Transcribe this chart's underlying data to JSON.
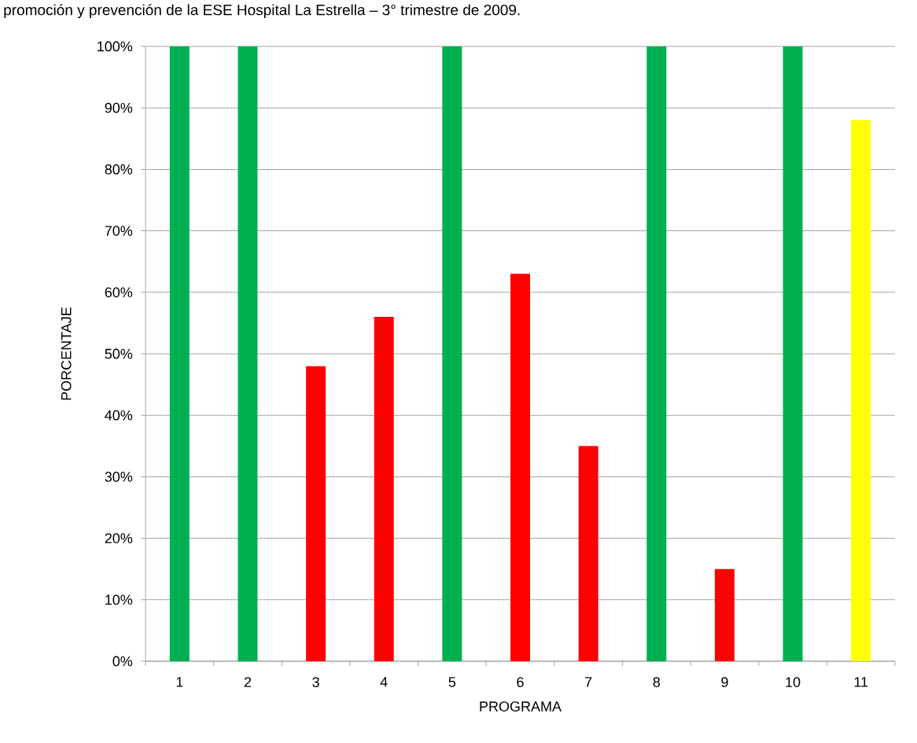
{
  "chart_data": {
    "type": "bar",
    "title": "promoción y prevención de la ESE Hospital La Estrella – 3° trimestre de 2009.",
    "xlabel": "PROGRAMA",
    "ylabel": "PORCENTAJE",
    "categories": [
      "1",
      "2",
      "3",
      "4",
      "5",
      "6",
      "7",
      "8",
      "9",
      "10",
      "11"
    ],
    "values": [
      100,
      100,
      48,
      56,
      100,
      63,
      35,
      100,
      15,
      100,
      88
    ],
    "colors": [
      "#00b050",
      "#00b050",
      "#ff0000",
      "#ff0000",
      "#00b050",
      "#ff0000",
      "#ff0000",
      "#00b050",
      "#ff0000",
      "#00b050",
      "#ffff00"
    ],
    "ylim": [
      0,
      100
    ],
    "yticks": [
      {
        "value": 0,
        "label": "0%"
      },
      {
        "value": 10,
        "label": "10%"
      },
      {
        "value": 20,
        "label": "20%"
      },
      {
        "value": 30,
        "label": "30%"
      },
      {
        "value": 40,
        "label": "40%"
      },
      {
        "value": 50,
        "label": "50%"
      },
      {
        "value": 60,
        "label": "60%"
      },
      {
        "value": 70,
        "label": "70%"
      },
      {
        "value": 80,
        "label": "80%"
      },
      {
        "value": 90,
        "label": "90%"
      },
      {
        "value": 100,
        "label": "100%"
      }
    ],
    "grid": "y"
  }
}
